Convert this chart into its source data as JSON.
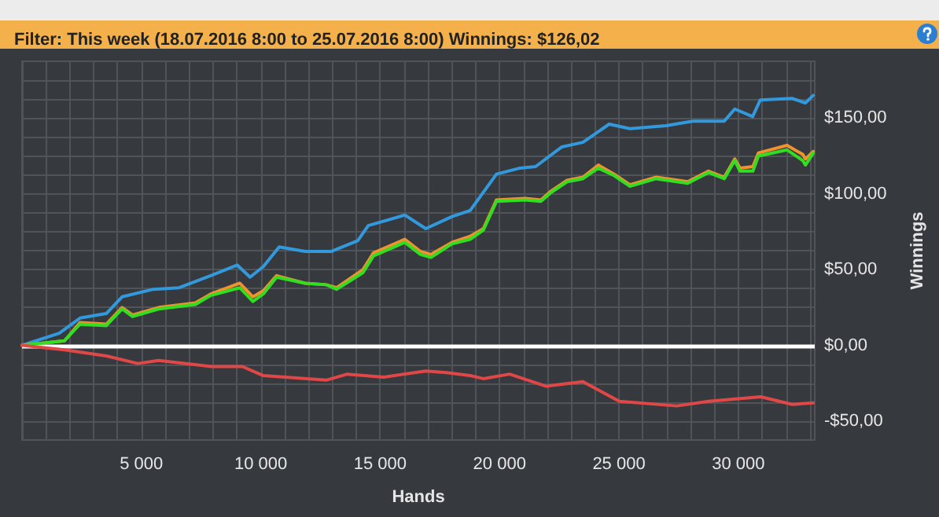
{
  "chart_data": {
    "type": "line",
    "title": "Filter: This week (18.07.2016 8:00 to 25.07.2016 8:00) Winnings: $126,02",
    "xlabel": "Hands",
    "ylabel": "Winnings",
    "xlim": [
      0,
      33200
    ],
    "ylim": [
      -62.5,
      187.5
    ],
    "xticks": [
      {
        "value": 1000,
        "label": null
      },
      {
        "value": 2000,
        "label": null
      },
      {
        "value": 3000,
        "label": null
      },
      {
        "value": 4000,
        "label": null
      },
      {
        "value": 5000,
        "label": "5 000"
      },
      {
        "value": 6000,
        "label": null
      },
      {
        "value": 7000,
        "label": null
      },
      {
        "value": 8000,
        "label": null
      },
      {
        "value": 9000,
        "label": null
      },
      {
        "value": 10000,
        "label": "10 000"
      },
      {
        "value": 11000,
        "label": null
      },
      {
        "value": 12000,
        "label": null
      },
      {
        "value": 13000,
        "label": null
      },
      {
        "value": 14000,
        "label": null
      },
      {
        "value": 15000,
        "label": "15 000"
      },
      {
        "value": 16000,
        "label": null
      },
      {
        "value": 17000,
        "label": null
      },
      {
        "value": 18000,
        "label": null
      },
      {
        "value": 19000,
        "label": null
      },
      {
        "value": 20000,
        "label": "20 000"
      },
      {
        "value": 21000,
        "label": null
      },
      {
        "value": 22000,
        "label": null
      },
      {
        "value": 23000,
        "label": null
      },
      {
        "value": 24000,
        "label": null
      },
      {
        "value": 25000,
        "label": "25 000"
      },
      {
        "value": 26000,
        "label": null
      },
      {
        "value": 27000,
        "label": null
      },
      {
        "value": 28000,
        "label": null
      },
      {
        "value": 29000,
        "label": null
      },
      {
        "value": 30000,
        "label": "30 000"
      },
      {
        "value": 31000,
        "label": null
      },
      {
        "value": 32000,
        "label": null
      },
      {
        "value": 33000,
        "label": null
      }
    ],
    "yticks": [
      {
        "value": -50,
        "label": "-$50,00"
      },
      {
        "value": -37.5,
        "label": null
      },
      {
        "value": -25,
        "label": null
      },
      {
        "value": -12.5,
        "label": null
      },
      {
        "value": 0,
        "label": "$0,00"
      },
      {
        "value": 12.5,
        "label": null
      },
      {
        "value": 25,
        "label": null
      },
      {
        "value": 37.5,
        "label": null
      },
      {
        "value": 50,
        "label": "$50,00"
      },
      {
        "value": 62.5,
        "label": null
      },
      {
        "value": 75,
        "label": null
      },
      {
        "value": 87.5,
        "label": null
      },
      {
        "value": 100,
        "label": "$100,00"
      },
      {
        "value": 112.5,
        "label": null
      },
      {
        "value": 125,
        "label": null
      },
      {
        "value": 137.5,
        "label": null
      },
      {
        "value": 150,
        "label": "$150,00"
      },
      {
        "value": 162.5,
        "label": null
      },
      {
        "value": 175,
        "label": null
      }
    ],
    "grid": true,
    "marker": "none",
    "line_style": "solid",
    "ref_lines": [
      {
        "axis": "y",
        "value": 0,
        "color": "#ffffff"
      }
    ],
    "series": [
      {
        "color": "#3399dd",
        "x": [
          0,
          1560,
          2430,
          3530,
          4190,
          5500,
          6580,
          7900,
          9010,
          9550,
          10110,
          10770,
          11860,
          12960,
          14060,
          14500,
          16030,
          16910,
          18010,
          18770,
          19870,
          20860,
          21510,
          22610,
          23490,
          24590,
          25460,
          26970,
          28090,
          29410,
          29850,
          30600,
          30920,
          32240,
          32810,
          33140
        ],
        "values": [
          0,
          8,
          18,
          21,
          32,
          37,
          38,
          46,
          53,
          45,
          52,
          65,
          62,
          62,
          69,
          79,
          86,
          77,
          85,
          89,
          113,
          117,
          118,
          131,
          134,
          146,
          143,
          145,
          148,
          148,
          156,
          151,
          162,
          163,
          160,
          165
        ]
      },
      {
        "color": "#f0922e",
        "x": [
          0,
          1780,
          2430,
          3530,
          4190,
          4630,
          5720,
          7260,
          7920,
          9120,
          9670,
          10110,
          10660,
          11860,
          12740,
          13180,
          14280,
          14720,
          16030,
          16690,
          17130,
          18010,
          18770,
          19320,
          19870,
          21070,
          21730,
          22170,
          22830,
          23490,
          24140,
          24800,
          25460,
          26560,
          27880,
          28750,
          29410,
          29850,
          30070,
          30610,
          30840,
          32040,
          32700,
          32810,
          33140
        ],
        "values": [
          0,
          3,
          15,
          14,
          25,
          20,
          25,
          28,
          34,
          41,
          32,
          36,
          46,
          41,
          40,
          38,
          50,
          61,
          70,
          62,
          60,
          68,
          72,
          77,
          96,
          97,
          96,
          102,
          109,
          111,
          119,
          113,
          106,
          111,
          108,
          115,
          111,
          123,
          117,
          118,
          127,
          132,
          126,
          123,
          128
        ]
      },
      {
        "color": "#33dd22",
        "x": [
          0,
          1780,
          2430,
          3530,
          4190,
          4630,
          5720,
          7260,
          7920,
          9120,
          9670,
          10110,
          10660,
          11860,
          12740,
          13180,
          14280,
          14720,
          16030,
          16690,
          17130,
          18010,
          18770,
          19320,
          19870,
          21070,
          21730,
          22170,
          22830,
          23490,
          24140,
          24800,
          25460,
          26560,
          27880,
          28750,
          29410,
          29850,
          30070,
          30610,
          30840,
          32040,
          32700,
          32810,
          33140
        ],
        "values": [
          0,
          3,
          14,
          13,
          24,
          19,
          24,
          27,
          33,
          38,
          29,
          34,
          45,
          41,
          40,
          37,
          48,
          59,
          68,
          60,
          58,
          67,
          70,
          76,
          95,
          96,
          95,
          101,
          108,
          110,
          117,
          112,
          105,
          110,
          107,
          114,
          110,
          122,
          115,
          115,
          125,
          129,
          122,
          119,
          127
        ]
      },
      {
        "color": "#e04848",
        "x": [
          0,
          1780,
          3530,
          4850,
          5720,
          7920,
          9230,
          10110,
          12740,
          13620,
          15150,
          16910,
          17780,
          18770,
          19320,
          20420,
          21950,
          23490,
          25020,
          27430,
          28750,
          30940,
          32260,
          33140
        ],
        "values": [
          0,
          -3,
          -7,
          -12,
          -10,
          -14,
          -14,
          -20,
          -23,
          -19,
          -21,
          -17,
          -18,
          -20,
          -22,
          -19,
          -27,
          -24,
          -37,
          -40,
          -37,
          -34,
          -39,
          -38
        ]
      }
    ]
  }
}
